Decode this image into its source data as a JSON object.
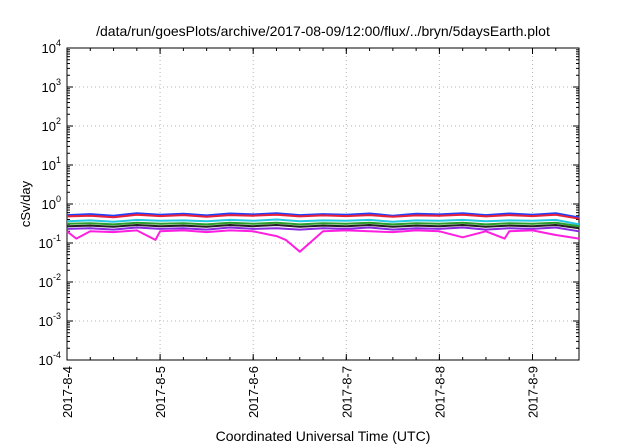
{
  "chart_data": {
    "type": "line",
    "title": "/data/run/goesPlots/archive/2017-08-09/12:00/flux/../bryn/5daysEarth.plot",
    "xlabel": "Coordinated Universal Time (UTC)",
    "ylabel": "cSv/day",
    "yscale": "log",
    "ylim": [
      0.0001,
      10000
    ],
    "y_tick_values": [
      0.0001,
      0.001,
      0.01,
      0.1,
      1,
      10,
      100,
      1000,
      10000
    ],
    "y_tick_labels": [
      {
        "base": "10",
        "exp": "-4"
      },
      {
        "base": "10",
        "exp": "-3"
      },
      {
        "base": "10",
        "exp": "-2"
      },
      {
        "base": "10",
        "exp": "-1"
      },
      {
        "base": "10",
        "exp": "0"
      },
      {
        "base": "10",
        "exp": "1"
      },
      {
        "base": "10",
        "exp": "2"
      },
      {
        "base": "10",
        "exp": "3"
      },
      {
        "base": "10",
        "exp": "4"
      }
    ],
    "x_tick_labels": [
      "2017-8-4",
      "2017-8-5",
      "2017-8-6",
      "2017-8-7",
      "2017-8-8",
      "2017-8-9"
    ],
    "x_domain_days": [
      0,
      5.5
    ],
    "grid": true,
    "series": [
      {
        "color": "#1f3fff",
        "x": [
          0,
          0.25,
          0.5,
          0.75,
          1,
          1.25,
          1.5,
          1.75,
          2,
          2.25,
          2.5,
          2.75,
          3,
          3.25,
          3.5,
          3.75,
          4,
          4.25,
          4.5,
          4.75,
          5,
          5.25,
          5.5
        ],
        "values": [
          0.52,
          0.55,
          0.5,
          0.58,
          0.53,
          0.56,
          0.51,
          0.57,
          0.54,
          0.58,
          0.52,
          0.55,
          0.53,
          0.57,
          0.5,
          0.56,
          0.54,
          0.58,
          0.52,
          0.57,
          0.53,
          0.58,
          0.45
        ]
      },
      {
        "color": "#e8213a",
        "x": [
          0,
          0.25,
          0.5,
          0.75,
          1,
          1.25,
          1.5,
          1.75,
          2,
          2.25,
          2.5,
          2.75,
          3,
          3.25,
          3.5,
          3.75,
          4,
          4.25,
          4.5,
          4.75,
          5,
          5.25,
          5.5
        ],
        "values": [
          0.48,
          0.5,
          0.46,
          0.53,
          0.49,
          0.52,
          0.47,
          0.52,
          0.5,
          0.53,
          0.48,
          0.51,
          0.49,
          0.52,
          0.47,
          0.51,
          0.5,
          0.53,
          0.48,
          0.52,
          0.49,
          0.53,
          0.42
        ]
      },
      {
        "color": "#22c8e6",
        "x": [
          0,
          0.25,
          0.5,
          0.75,
          1,
          1.25,
          1.5,
          1.75,
          2,
          2.25,
          2.5,
          2.75,
          3,
          3.25,
          3.5,
          3.75,
          4,
          4.25,
          4.5,
          4.75,
          5,
          5.25,
          5.5
        ],
        "values": [
          0.36,
          0.38,
          0.35,
          0.39,
          0.37,
          0.38,
          0.36,
          0.39,
          0.37,
          0.4,
          0.36,
          0.38,
          0.37,
          0.39,
          0.35,
          0.38,
          0.37,
          0.39,
          0.36,
          0.38,
          0.37,
          0.39,
          0.3
        ]
      },
      {
        "color": "#2aa02a",
        "x": [
          0,
          0.25,
          0.5,
          0.75,
          1,
          1.25,
          1.5,
          1.75,
          2,
          2.25,
          2.5,
          2.75,
          3,
          3.25,
          3.5,
          3.75,
          4,
          4.25,
          4.5,
          4.75,
          5,
          5.25,
          5.5
        ],
        "values": [
          0.31,
          0.32,
          0.3,
          0.33,
          0.31,
          0.32,
          0.3,
          0.33,
          0.31,
          0.33,
          0.3,
          0.32,
          0.31,
          0.33,
          0.3,
          0.32,
          0.31,
          0.33,
          0.3,
          0.32,
          0.31,
          0.33,
          0.27
        ]
      },
      {
        "color": "#222222",
        "x": [
          0,
          0.25,
          0.5,
          0.75,
          1,
          1.25,
          1.5,
          1.75,
          2,
          2.25,
          2.5,
          2.75,
          3,
          3.25,
          3.5,
          3.75,
          4,
          4.25,
          4.5,
          4.75,
          5,
          5.25,
          5.5
        ],
        "values": [
          0.27,
          0.28,
          0.26,
          0.29,
          0.27,
          0.28,
          0.26,
          0.29,
          0.27,
          0.29,
          0.26,
          0.28,
          0.27,
          0.29,
          0.26,
          0.28,
          0.27,
          0.29,
          0.26,
          0.28,
          0.27,
          0.29,
          0.24
        ]
      },
      {
        "color": "#8a2be2",
        "x": [
          0,
          0.25,
          0.5,
          0.75,
          1,
          1.25,
          1.5,
          1.75,
          2,
          2.25,
          2.5,
          2.75,
          3,
          3.25,
          3.5,
          3.75,
          4,
          4.25,
          4.5,
          4.75,
          5,
          5.25,
          5.5
        ],
        "values": [
          0.23,
          0.24,
          0.22,
          0.25,
          0.23,
          0.24,
          0.22,
          0.25,
          0.23,
          0.24,
          0.22,
          0.24,
          0.23,
          0.25,
          0.22,
          0.24,
          0.23,
          0.25,
          0.22,
          0.24,
          0.23,
          0.25,
          0.2
        ]
      },
      {
        "color": "#ff1ee0",
        "x": [
          0,
          0.1,
          0.25,
          0.5,
          0.75,
          0.95,
          1,
          1.25,
          1.5,
          1.75,
          2,
          2.25,
          2.35,
          2.5,
          2.75,
          3,
          3.25,
          3.5,
          3.75,
          4,
          4.25,
          4.5,
          4.7,
          4.75,
          5,
          5.25,
          5.5
        ],
        "values": [
          0.2,
          0.13,
          0.2,
          0.19,
          0.21,
          0.12,
          0.2,
          0.21,
          0.19,
          0.21,
          0.2,
          0.15,
          0.12,
          0.06,
          0.2,
          0.21,
          0.2,
          0.19,
          0.21,
          0.2,
          0.14,
          0.2,
          0.13,
          0.2,
          0.21,
          0.16,
          0.13
        ]
      }
    ]
  }
}
